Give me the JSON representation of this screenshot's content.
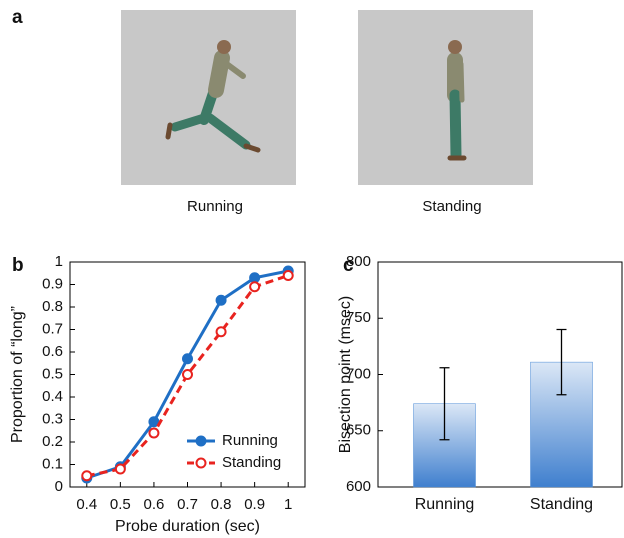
{
  "figure": {
    "panel_a": {
      "label": "a",
      "images": [
        {
          "caption": "Running"
        },
        {
          "caption": "Standing"
        }
      ]
    }
  },
  "chart_data": [
    {
      "type": "line",
      "panel_label": "b",
      "x_label": "Probe duration (sec)",
      "y_label": "Proportion of “long”",
      "x": [
        0.4,
        0.5,
        0.6,
        0.7,
        0.8,
        0.9,
        1
      ],
      "series": [
        {
          "name": "Running",
          "color": "#1f6fc5",
          "values": [
            0.04,
            0.09,
            0.29,
            0.57,
            0.83,
            0.93,
            0.96
          ]
        },
        {
          "name": "Standing",
          "color": "#e8231f",
          "values": [
            0.05,
            0.08,
            0.24,
            0.5,
            0.69,
            0.89,
            0.94
          ]
        }
      ],
      "xlim": [
        0.35,
        1.05
      ],
      "xticks": [
        0.4,
        0.5,
        0.6,
        0.7,
        0.8,
        0.9,
        1
      ],
      "ylim": [
        0,
        1
      ],
      "yticks": [
        0,
        0.1,
        0.2,
        0.3,
        0.4,
        0.5,
        0.6,
        0.7,
        0.8,
        0.9,
        1
      ],
      "legend": "lower-right"
    },
    {
      "type": "bar",
      "panel_label": "c",
      "y_label": "Bisection point (msec)",
      "categories": [
        "Running",
        "Standing"
      ],
      "values": [
        674,
        711
      ],
      "errors": [
        32,
        29
      ],
      "color": "#4a8ad6",
      "ylim": [
        600,
        800
      ],
      "yticks": [
        600,
        650,
        700,
        750,
        800
      ]
    }
  ]
}
